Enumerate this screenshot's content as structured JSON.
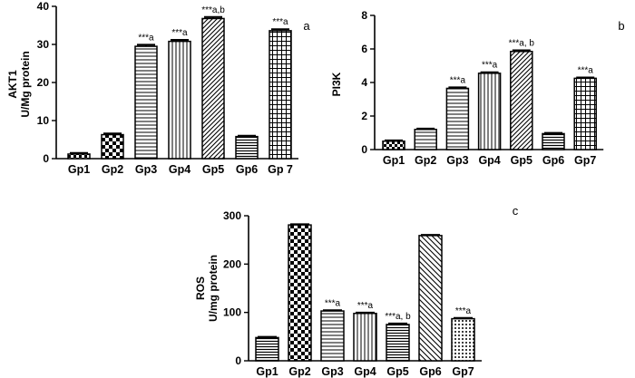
{
  "chart_data": [
    {
      "type": "bar",
      "panel_letter": "a",
      "title": "",
      "xlabel": "",
      "ylabel_lines": [
        "AKT1",
        "U/Mg protein"
      ],
      "ylim": [
        0,
        40
      ],
      "yticks": [
        0,
        10,
        20,
        30,
        40
      ],
      "categories": [
        "Gp1",
        "Gp2",
        "Gp3",
        "Gp4",
        "Gp5",
        "Gp6",
        "Gp 7"
      ],
      "values": [
        1.2,
        6.3,
        29.5,
        30.8,
        36.8,
        5.8,
        33.6
      ],
      "errors": [
        0.3,
        0.3,
        0.4,
        0.4,
        0.4,
        0.2,
        0.4
      ],
      "patterns": [
        "checker-small",
        "checker-large",
        "hlines",
        "vlines",
        "diag",
        "hlines-dense",
        "grid"
      ],
      "annotations": [
        "",
        "",
        "***a",
        "***a",
        "***a,b",
        "",
        "***a"
      ]
    },
    {
      "type": "bar",
      "panel_letter": "b",
      "title": "",
      "xlabel": "",
      "ylabel_lines": [
        "PI3K"
      ],
      "ylim": [
        0,
        8
      ],
      "yticks": [
        0,
        2,
        4,
        6,
        8
      ],
      "categories": [
        "Gp1",
        "Gp2",
        "Gp3",
        "Gp4",
        "Gp5",
        "Gp6",
        "Gp7"
      ],
      "values": [
        0.5,
        1.2,
        3.65,
        4.55,
        5.85,
        0.95,
        4.25
      ],
      "errors": [
        0.05,
        0.05,
        0.06,
        0.06,
        0.07,
        0.04,
        0.05
      ],
      "patterns": [
        "checker-small",
        "hlines",
        "hlines",
        "vlines",
        "diag",
        "hlines-dense",
        "grid"
      ],
      "annotations": [
        "",
        "",
        "***a",
        "***a",
        "***a, b",
        "",
        "***a"
      ]
    },
    {
      "type": "bar",
      "panel_letter": "c",
      "title": "",
      "xlabel": "",
      "ylabel_lines": [
        "ROS",
        "U/mg protein"
      ],
      "ylim": [
        0,
        300
      ],
      "yticks": [
        0,
        100,
        200,
        300
      ],
      "categories": [
        "Gp1",
        "Gp2",
        "Gp3",
        "Gp4",
        "Gp5",
        "Gp6",
        "Gp7"
      ],
      "values": [
        48,
        281,
        103,
        98,
        75,
        259,
        87
      ],
      "errors": [
        1.5,
        1.5,
        1.5,
        1.5,
        2,
        1.5,
        1.5
      ],
      "patterns": [
        "hlines-dense",
        "checker-large",
        "hlines",
        "vlines",
        "hlines-dense",
        "diag-back",
        "dots"
      ],
      "annotations": [
        "",
        "",
        "***a",
        "***a",
        "***a, b",
        "",
        "***a"
      ]
    }
  ]
}
